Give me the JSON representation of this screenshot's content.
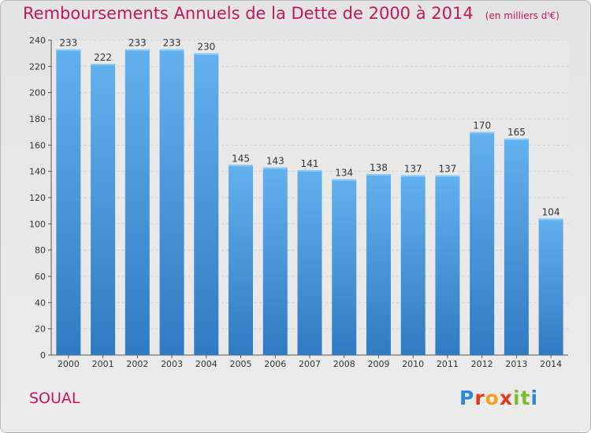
{
  "chart_data": {
    "type": "bar",
    "title": "Remboursements Annuels de la Dette de 2000 à 2014",
    "unit_note": "(en milliers d'€)",
    "categories": [
      "2000",
      "2001",
      "2002",
      "2003",
      "2004",
      "2005",
      "2006",
      "2007",
      "2008",
      "2009",
      "2010",
      "2011",
      "2012",
      "2013",
      "2014"
    ],
    "values": [
      233,
      222,
      233,
      233,
      230,
      145,
      143,
      141,
      134,
      138,
      137,
      137,
      170,
      165,
      104
    ],
    "ylim": [
      0,
      240
    ],
    "yticks": [
      0,
      20,
      40,
      60,
      80,
      100,
      120,
      140,
      160,
      180,
      200,
      220,
      240
    ],
    "grid": true,
    "bar_color": "#4a9de0"
  },
  "footer": {
    "commune": "SOUAL",
    "brand": "Proxiti"
  },
  "colors": {
    "title": "#c0185d",
    "brand_letters": [
      "#2f88d6",
      "#e23a1c",
      "#f2a01f",
      "#e23a1c",
      "#7bbf2e",
      "#7bbf2e",
      "#2f88d6"
    ]
  }
}
